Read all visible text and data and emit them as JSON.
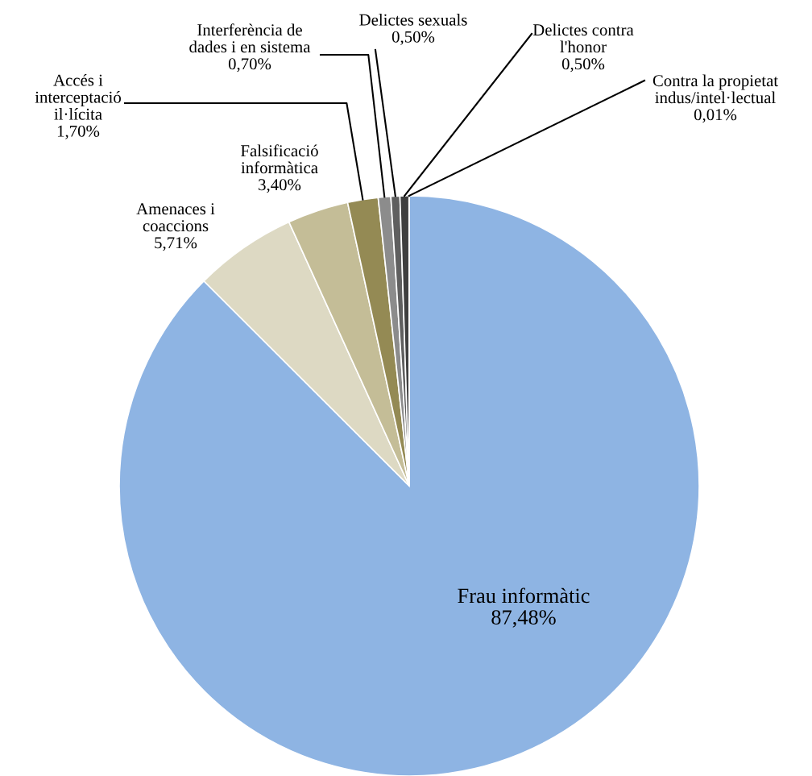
{
  "chart_data": {
    "type": "pie",
    "categories": [
      "Frau informàtic",
      "Amenaces i\ncoaccions",
      "Falsificació\ninformàtica",
      "Accés i\ninterceptació\nil·lícita",
      "Interferència de\ndades i en sistema",
      "Delictes sexuals",
      "Delictes contra\nl'honor",
      "Contra la propietat\nindus/intel·lectual"
    ],
    "values": [
      87.48,
      5.71,
      3.4,
      1.7,
      0.7,
      0.5,
      0.5,
      0.01
    ],
    "value_labels": [
      "87,48%",
      "5,71%",
      "3,40%",
      "1,70%",
      "0,70%",
      "0,50%",
      "0,50%",
      "0,01%"
    ],
    "colors": [
      "#8eb4e3",
      "#ddd9c3",
      "#c4bd97",
      "#948a54",
      "#8c8c8c",
      "#5f5f5f",
      "#3f3f3f",
      "#1a1a1a"
    ]
  }
}
